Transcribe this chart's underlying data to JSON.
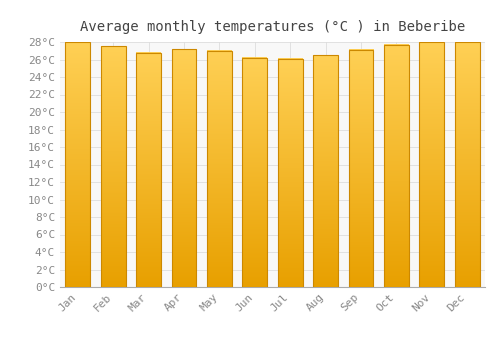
{
  "title": "Average monthly temperatures (°C ) in Beberibe",
  "months": [
    "Jan",
    "Feb",
    "Mar",
    "Apr",
    "May",
    "Jun",
    "Jul",
    "Aug",
    "Sep",
    "Oct",
    "Nov",
    "Dec"
  ],
  "values": [
    28.0,
    27.5,
    26.8,
    27.2,
    27.0,
    26.2,
    26.1,
    26.5,
    27.1,
    27.7,
    28.0,
    28.0
  ],
  "bar_color_main": "#FFA500",
  "bar_color_light": "#FFD060",
  "bar_color_dark": "#E08000",
  "bar_edge_color": "#CC8800",
  "background_color": "#FFFFFF",
  "plot_bg_color": "#F8F8F8",
  "grid_color": "#DDDDDD",
  "title_color": "#444444",
  "tick_label_color": "#888888",
  "ylim": [
    0,
    28
  ],
  "ytick_step": 2,
  "title_fontsize": 10,
  "tick_fontsize": 8,
  "bar_width": 0.7
}
